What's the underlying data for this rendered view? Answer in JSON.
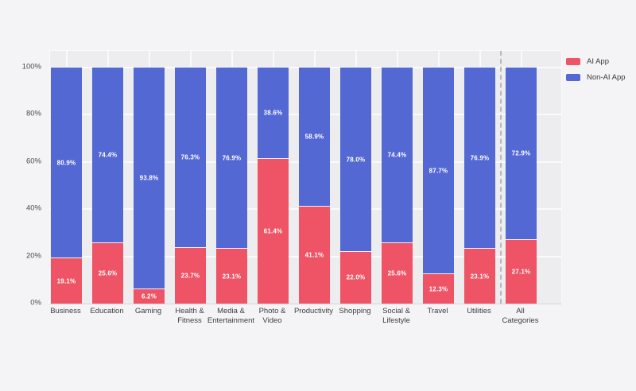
{
  "chart_data": {
    "type": "bar",
    "stacked": true,
    "percent_stacked": true,
    "title": "",
    "xlabel": "",
    "ylabel": "",
    "ylim": [
      0,
      100
    ],
    "grid": true,
    "legend_position": "top-right",
    "categories": [
      "Business",
      "Education",
      "Gaming",
      "Health &\nFitness",
      "Media &\nEntertainment",
      "Photo &\nVideo",
      "Productivity",
      "Shopping",
      "Social &\nLifestyle",
      "Travel",
      "Utilities",
      "All\nCategories"
    ],
    "series": [
      {
        "name": "AI App",
        "color": "#ee5465",
        "values": [
          19.1,
          25.6,
          6.2,
          23.7,
          23.1,
          61.4,
          41.1,
          22.0,
          25.6,
          12.3,
          23.1,
          27.1
        ]
      },
      {
        "name": "Non-AI App",
        "color": "#5468d4",
        "values": [
          80.9,
          74.4,
          93.8,
          76.3,
          76.9,
          38.6,
          58.9,
          78.0,
          74.4,
          87.7,
          76.9,
          72.9
        ]
      }
    ],
    "value_label_suffix": "%",
    "yticks": [
      {
        "value": 0,
        "label": "0%"
      },
      {
        "value": 20,
        "label": "20%"
      },
      {
        "value": 40,
        "label": "40%"
      },
      {
        "value": 60,
        "label": "60%"
      },
      {
        "value": 80,
        "label": "80%"
      },
      {
        "value": 100,
        "label": "100%"
      }
    ],
    "separator_after_index": 10
  },
  "colors": {
    "background": "#f4f4f6",
    "plot_background": "#ededef",
    "gridline": "#fafafb",
    "axis_line": "#d7d7da",
    "separator": "#b8b8bc",
    "bar_value_text": "#ffffff",
    "axis_text": "#3d3d3d"
  }
}
